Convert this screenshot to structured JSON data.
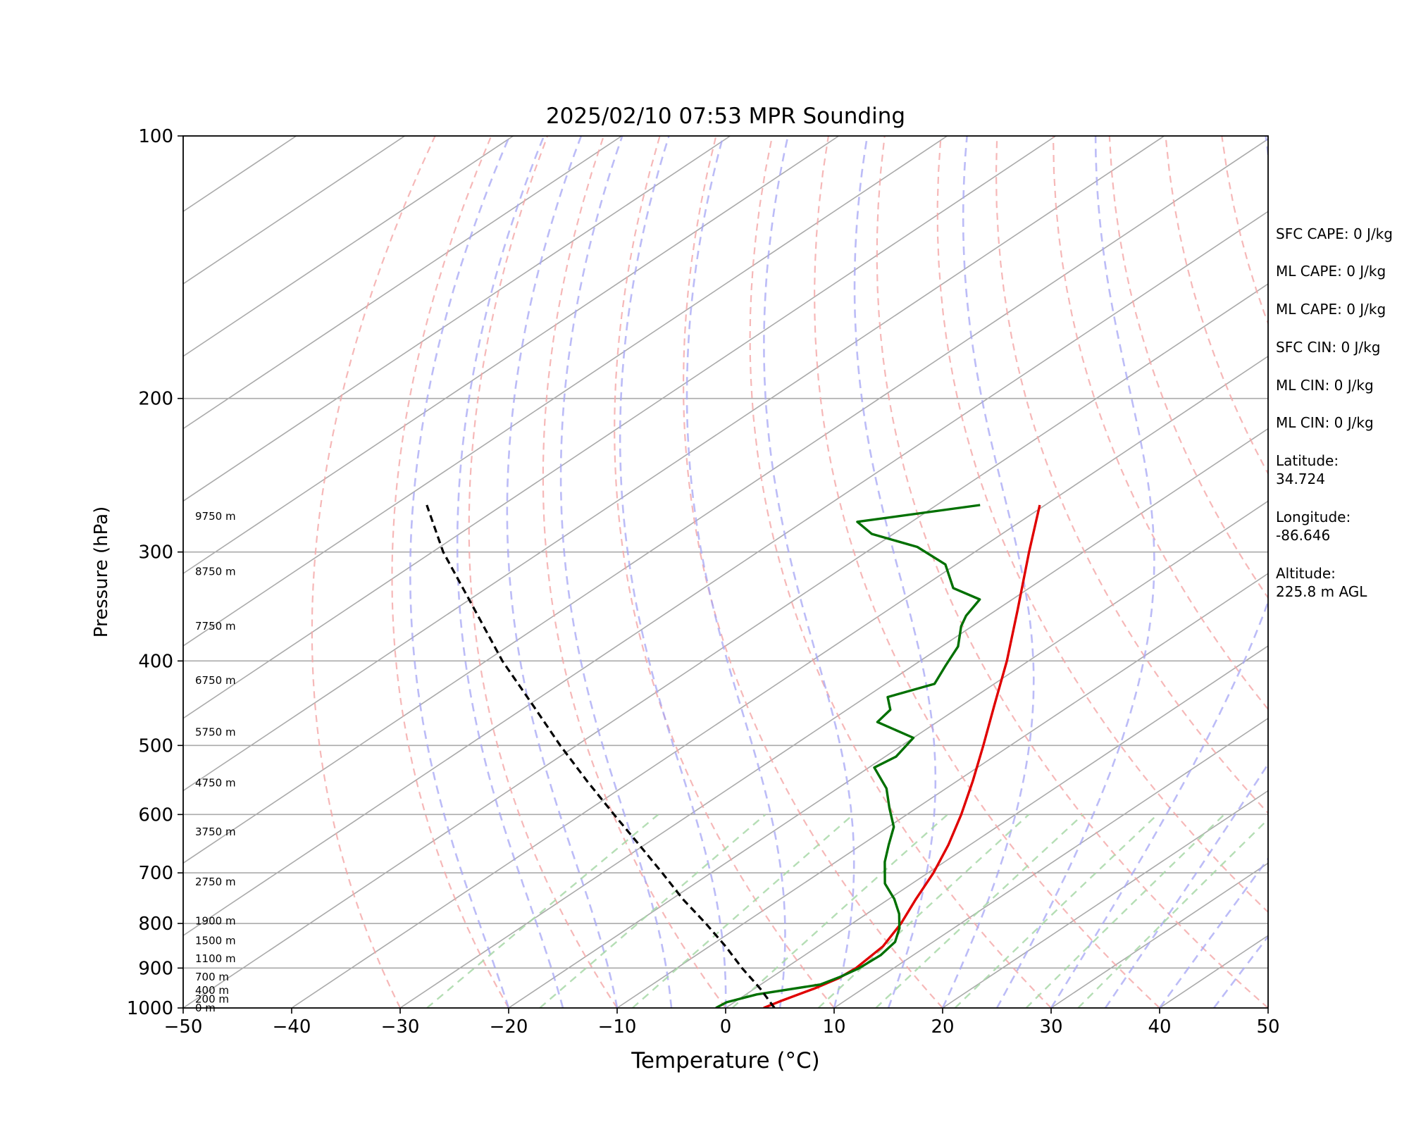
{
  "chart_data": {
    "type": "line",
    "title": "2025/02/10 07:53 MPR Sounding",
    "xlabel": "Temperature (°C)",
    "ylabel": "Pressure (hPa)",
    "xlim": [
      -50,
      50
    ],
    "ylim": [
      1000,
      100
    ],
    "y_scale": "log",
    "x_ticks": [
      "−50",
      "−40",
      "−30",
      "−20",
      "−10",
      "0",
      "10",
      "20",
      "30",
      "40",
      "50"
    ],
    "y_ticks": [
      "100",
      "200",
      "300",
      "400",
      "500",
      "600",
      "700",
      "800",
      "900",
      "1000"
    ],
    "grid": true,
    "skew": true,
    "series": [
      {
        "color": "#e00000",
        "style": "solid",
        "values": [
          {
            "p": 1000,
            "t": 3.5
          },
          {
            "p": 980,
            "t": 4.2
          },
          {
            "p": 950,
            "t": 5.5
          },
          {
            "p": 925,
            "t": 6.3
          },
          {
            "p": 900,
            "t": 6.5
          },
          {
            "p": 850,
            "t": 6.0
          },
          {
            "p": 800,
            "t": 4.5
          },
          {
            "p": 750,
            "t": 2.5
          },
          {
            "p": 700,
            "t": 0.5
          },
          {
            "p": 650,
            "t": -2.0
          },
          {
            "p": 600,
            "t": -5.0
          },
          {
            "p": 550,
            "t": -8.5
          },
          {
            "p": 500,
            "t": -12.5
          },
          {
            "p": 450,
            "t": -17.0
          },
          {
            "p": 400,
            "t": -22.0
          },
          {
            "p": 350,
            "t": -28.0
          },
          {
            "p": 300,
            "t": -35.0
          },
          {
            "p": 265,
            "t": -40.5
          }
        ]
      },
      {
        "color": "#007000",
        "style": "solid",
        "values": [
          {
            "p": 1000,
            "t": -0.9
          },
          {
            "p": 985,
            "t": -0.7
          },
          {
            "p": 965,
            "t": 1.0
          },
          {
            "p": 940,
            "t": 5.5
          },
          {
            "p": 920,
            "t": 6.3
          },
          {
            "p": 900,
            "t": 6.8
          },
          {
            "p": 870,
            "t": 7.0
          },
          {
            "p": 840,
            "t": 6.5
          },
          {
            "p": 810,
            "t": 5.0
          },
          {
            "p": 780,
            "t": 3.0
          },
          {
            "p": 750,
            "t": 0.5
          },
          {
            "p": 720,
            "t": -2.5
          },
          {
            "p": 680,
            "t": -5.5
          },
          {
            "p": 650,
            "t": -7.5
          },
          {
            "p": 620,
            "t": -9.5
          },
          {
            "p": 590,
            "t": -12.5
          },
          {
            "p": 560,
            "t": -15.5
          },
          {
            "p": 530,
            "t": -19.5
          },
          {
            "p": 515,
            "t": -19.0
          },
          {
            "p": 490,
            "t": -20.0
          },
          {
            "p": 470,
            "t": -25.5
          },
          {
            "p": 455,
            "t": -26.0
          },
          {
            "p": 440,
            "t": -28.0
          },
          {
            "p": 425,
            "t": -25.5
          },
          {
            "p": 405,
            "t": -27.0
          },
          {
            "p": 385,
            "t": -28.5
          },
          {
            "p": 365,
            "t": -31.0
          },
          {
            "p": 355,
            "t": -32.0
          },
          {
            "p": 340,
            "t": -33.0
          },
          {
            "p": 330,
            "t": -37.0
          },
          {
            "p": 310,
            "t": -41.0
          },
          {
            "p": 296,
            "t": -46.0
          },
          {
            "p": 286,
            "t": -52.0
          },
          {
            "p": 277,
            "t": -55.0
          },
          {
            "p": 265,
            "t": -46.0
          }
        ]
      },
      {
        "color": "#000000",
        "style": "dashed",
        "values": [
          {
            "p": 1000,
            "t": 4.5
          },
          {
            "p": 950,
            "t": 0.5
          },
          {
            "p": 900,
            "t": -4.0
          },
          {
            "p": 850,
            "t": -8.5
          },
          {
            "p": 800,
            "t": -13.5
          },
          {
            "p": 750,
            "t": -19.0
          },
          {
            "p": 700,
            "t": -24.5
          },
          {
            "p": 650,
            "t": -30.5
          },
          {
            "p": 600,
            "t": -37.0
          },
          {
            "p": 550,
            "t": -44.0
          },
          {
            "p": 500,
            "t": -51.5
          },
          {
            "p": 450,
            "t": -59.5
          },
          {
            "p": 400,
            "t": -68.5
          },
          {
            "p": 350,
            "t": -78.0
          },
          {
            "p": 300,
            "t": -89.0
          },
          {
            "p": 265,
            "t": -97.0
          }
        ]
      }
    ],
    "height_labels": [
      {
        "p": 1000,
        "label": "0 m"
      },
      {
        "p": 977,
        "label": "200 m"
      },
      {
        "p": 955,
        "label": "400 m"
      },
      {
        "p": 921,
        "label": "700 m"
      },
      {
        "p": 878,
        "label": "1100 m"
      },
      {
        "p": 837,
        "label": "1500 m"
      },
      {
        "p": 795,
        "label": "1900 m"
      },
      {
        "p": 717,
        "label": "2750 m"
      },
      {
        "p": 628,
        "label": "3750 m"
      },
      {
        "p": 552,
        "label": "4750 m"
      },
      {
        "p": 483,
        "label": "5750 m"
      },
      {
        "p": 421,
        "label": "6750 m"
      },
      {
        "p": 365,
        "label": "7750 m"
      },
      {
        "p": 316,
        "label": "8750 m"
      },
      {
        "p": 273,
        "label": "9750 m"
      }
    ]
  },
  "info": {
    "sfc_cape": "SFC CAPE: 0 J/kg",
    "ml_cape_1": "ML CAPE: 0 J/kg",
    "ml_cape_2": "ML CAPE: 0 J/kg",
    "sfc_cin": "SFC CIN: 0 J/kg",
    "ml_cin_1": "ML CIN: 0 J/kg",
    "ml_cin_2": "ML CIN: 0 J/kg",
    "latitude_label": "Latitude:",
    "latitude_value": "34.724",
    "longitude_label": "Longitude:",
    "longitude_value": "-86.646",
    "altitude_label": "Altitude:",
    "altitude_value": "225.8 m AGL"
  }
}
